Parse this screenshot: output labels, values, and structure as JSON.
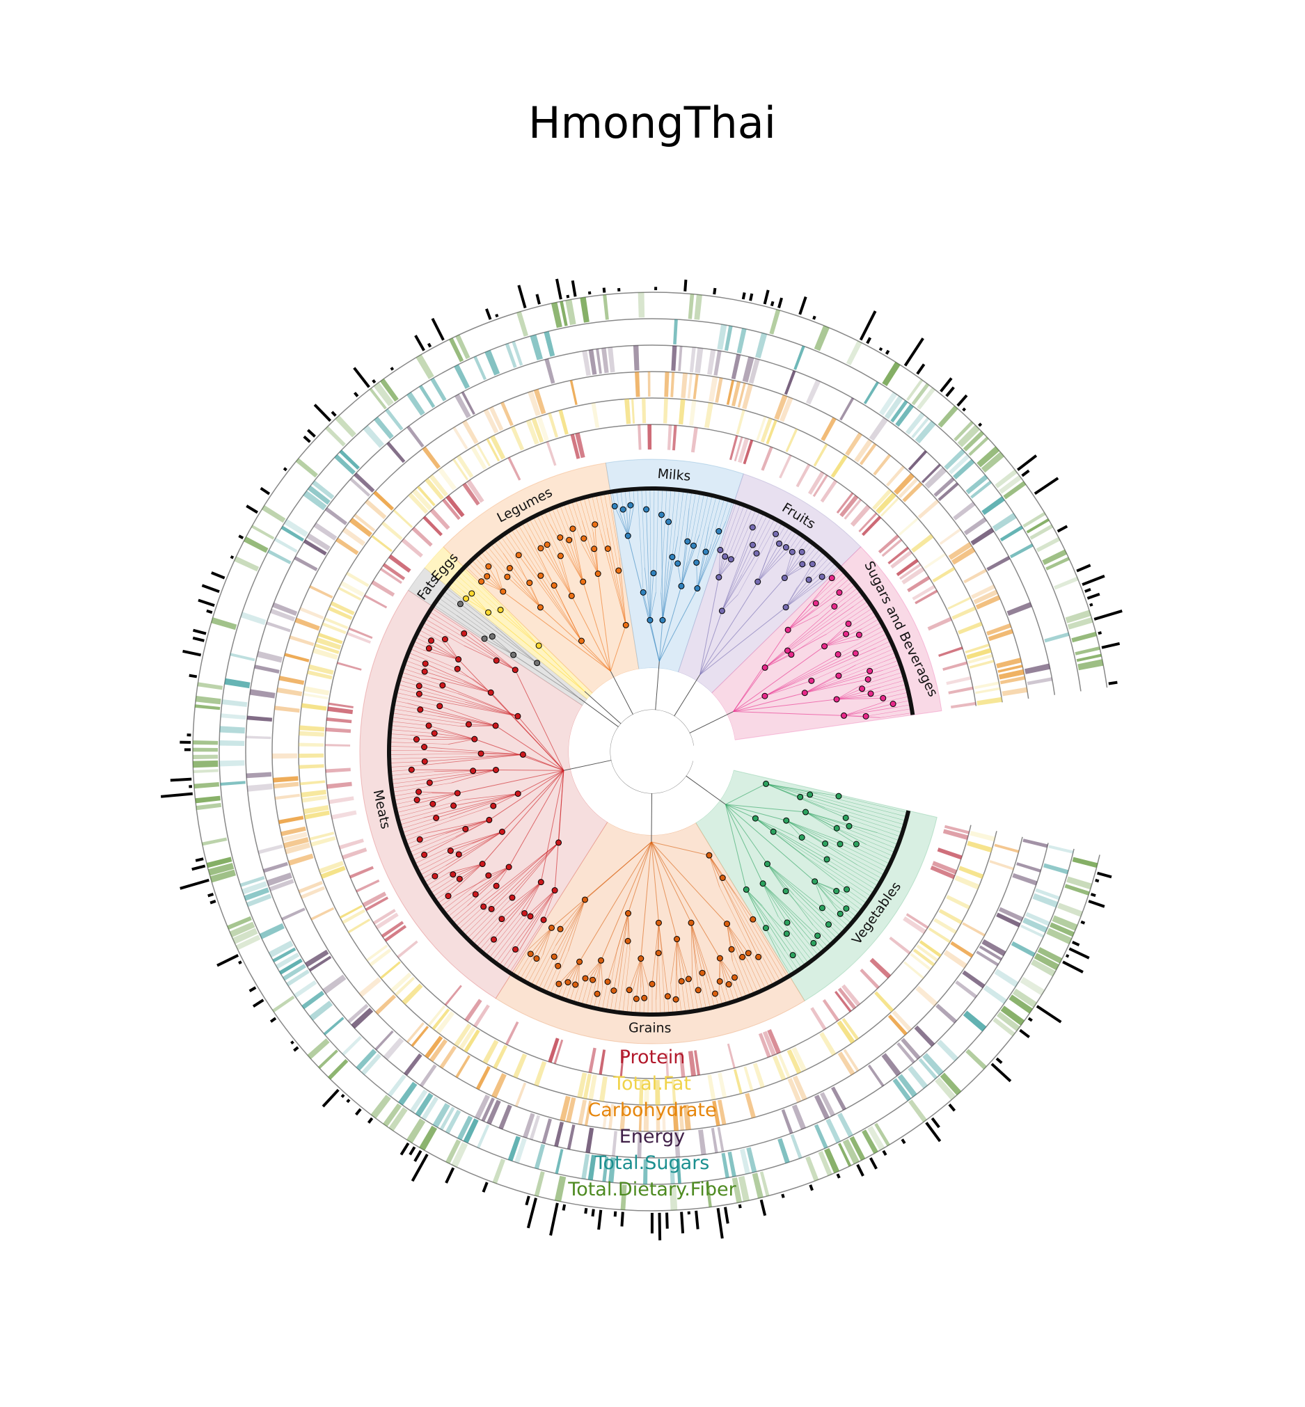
{
  "chart_data": {
    "type": "circular-taxonomy-tree",
    "title": "HmongThai",
    "groups": [
      {
        "name": "Vegetables",
        "color": "#2ca25f",
        "fill": "#d8efe2",
        "count": 50
      },
      {
        "name": "Grains",
        "color": "#d95f0e",
        "fill": "#fbe3d2",
        "count": 70
      },
      {
        "name": "Meats",
        "color": "#cb181d",
        "fill": "#f6dede",
        "count": 100
      },
      {
        "name": "Fats",
        "color": "#737373",
        "fill": "#e3e3e3",
        "count": 6
      },
      {
        "name": "Eggs",
        "color": "#ffd92f",
        "fill": "#fff4c2",
        "count": 6
      },
      {
        "name": "Legumes",
        "color": "#ec7014",
        "fill": "#fde6d2",
        "count": 40
      },
      {
        "name": "Milks",
        "color": "#3182bd",
        "fill": "#dcebf7",
        "count": 30
      },
      {
        "name": "Fruits",
        "color": "#756bb1",
        "fill": "#e8e0f0",
        "count": 30
      },
      {
        "name": "Sugars and Beverages",
        "color": "#e7298a",
        "fill": "#f9d9e6",
        "count": 40
      }
    ],
    "rings": [
      {
        "name": "Protein",
        "color": "#b2182b"
      },
      {
        "name": "Total.Fat",
        "color": "#f0d34a"
      },
      {
        "name": "Carbohydrate",
        "color": "#e6860c"
      },
      {
        "name": "Energy",
        "color": "#3f1f47"
      },
      {
        "name": "Total.Sugars",
        "color": "#1b8f8f"
      },
      {
        "name": "Total.Dietary.Fiber",
        "color": "#4d8a20"
      }
    ],
    "outer_bar_color": "#000000"
  }
}
